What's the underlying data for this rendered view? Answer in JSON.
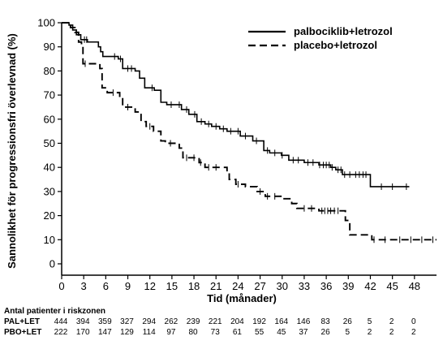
{
  "chart_data": {
    "type": "line",
    "title": "",
    "xlabel": "Tid (månader)",
    "ylabel": "Sannolikhet för progressionsfri överlevnad (%)",
    "xlim": [
      0,
      51
    ],
    "ylim": [
      0,
      100
    ],
    "x_ticks": [
      0,
      3,
      6,
      9,
      12,
      15,
      18,
      21,
      24,
      27,
      30,
      33,
      36,
      39,
      42,
      45,
      48
    ],
    "y_ticks": [
      0,
      10,
      20,
      30,
      40,
      50,
      60,
      70,
      80,
      90,
      100
    ],
    "grid": false,
    "legend_position": "top-right",
    "series": [
      {
        "name": "palbociklib+letrozol",
        "line_style": "solid",
        "color": "#000000",
        "points": [
          [
            0,
            100
          ],
          [
            1.0,
            99
          ],
          [
            1.5,
            97
          ],
          [
            2.0,
            95
          ],
          [
            2.6,
            93
          ],
          [
            3.5,
            92
          ],
          [
            5.0,
            90
          ],
          [
            5.3,
            88
          ],
          [
            5.6,
            86
          ],
          [
            7.7,
            85
          ],
          [
            8.3,
            81
          ],
          [
            10.0,
            80
          ],
          [
            10.6,
            77
          ],
          [
            11.3,
            73
          ],
          [
            12.6,
            72
          ],
          [
            13.5,
            67
          ],
          [
            14.3,
            66
          ],
          [
            16.3,
            64
          ],
          [
            17.3,
            62
          ],
          [
            18.4,
            59
          ],
          [
            19.5,
            58
          ],
          [
            20.4,
            57
          ],
          [
            21.5,
            56
          ],
          [
            22.5,
            55
          ],
          [
            24.3,
            53
          ],
          [
            26.0,
            51
          ],
          [
            27.5,
            47
          ],
          [
            28.3,
            46
          ],
          [
            29.9,
            45
          ],
          [
            30.9,
            43
          ],
          [
            33.0,
            42
          ],
          [
            35.0,
            41
          ],
          [
            36.6,
            40
          ],
          [
            37.3,
            39
          ],
          [
            38.2,
            37
          ],
          [
            41.7,
            37
          ],
          [
            42.0,
            32
          ],
          [
            47.3,
            32
          ]
        ],
        "censor_x": [
          3.1,
          3.4,
          7.2,
          8.0,
          9.0,
          9.5,
          12.3,
          14.9,
          16.0,
          17.0,
          18.1,
          19.0,
          20.0,
          21.0,
          22.0,
          23.0,
          24.0,
          25.0,
          26.5,
          28.0,
          29.0,
          30.0,
          31.5,
          32.2,
          33.5,
          34.2,
          35.1,
          35.6,
          36.0,
          36.4,
          36.8,
          37.6,
          38.0,
          38.5,
          39.2,
          40.0,
          40.5,
          41.0,
          41.4,
          43.5,
          45.0,
          46.9
        ]
      },
      {
        "name": "placebo+letrozol",
        "line_style": "dashed",
        "color": "#000000",
        "points": [
          [
            0,
            100
          ],
          [
            1.2,
            98
          ],
          [
            1.8,
            96
          ],
          [
            2.3,
            92
          ],
          [
            2.7,
            90
          ],
          [
            2.9,
            83
          ],
          [
            5.2,
            81
          ],
          [
            5.5,
            73
          ],
          [
            6.2,
            71
          ],
          [
            7.9,
            69
          ],
          [
            8.3,
            65
          ],
          [
            10.0,
            63
          ],
          [
            10.8,
            59
          ],
          [
            11.5,
            57
          ],
          [
            12.5,
            55
          ],
          [
            13.5,
            51
          ],
          [
            14.1,
            50
          ],
          [
            16.0,
            48
          ],
          [
            16.5,
            44
          ],
          [
            18.7,
            42
          ],
          [
            19.5,
            40
          ],
          [
            22.5,
            38
          ],
          [
            22.8,
            35
          ],
          [
            23.7,
            33
          ],
          [
            25.0,
            32
          ],
          [
            26.6,
            30
          ],
          [
            27.7,
            28
          ],
          [
            30.0,
            27
          ],
          [
            31.3,
            25
          ],
          [
            32.0,
            23
          ],
          [
            35.0,
            22
          ],
          [
            38.2,
            22
          ],
          [
            38.6,
            18
          ],
          [
            39.2,
            12
          ],
          [
            42.0,
            12
          ],
          [
            42.2,
            10
          ],
          [
            51.0,
            10
          ]
        ],
        "censor_x": [
          3.2,
          7.0,
          9.0,
          12.0,
          14.8,
          17.0,
          18.0,
          18.9,
          20.0,
          21.0,
          24.0,
          27.0,
          28.0,
          29.0,
          33.0,
          34.0,
          35.4,
          35.8,
          36.2,
          36.6,
          37.1,
          37.6,
          42.5,
          44.0,
          46.0,
          47.5,
          49.0,
          50.5
        ]
      }
    ],
    "risk_table": {
      "title": "Antal patienter i riskzonen",
      "rows": [
        {
          "label": "PAL+LET",
          "values": [
            "444",
            "394",
            "359",
            "327",
            "294",
            "262",
            "239",
            "221",
            "204",
            "192",
            "164",
            "146",
            "83",
            "26",
            "5",
            "2",
            "0"
          ]
        },
        {
          "label": "PBO+LET",
          "values": [
            "222",
            "170",
            "147",
            "129",
            "114",
            "97",
            "80",
            "73",
            "61",
            "55",
            "45",
            "37",
            "26",
            "5",
            "2",
            "2",
            "2"
          ]
        }
      ]
    }
  }
}
